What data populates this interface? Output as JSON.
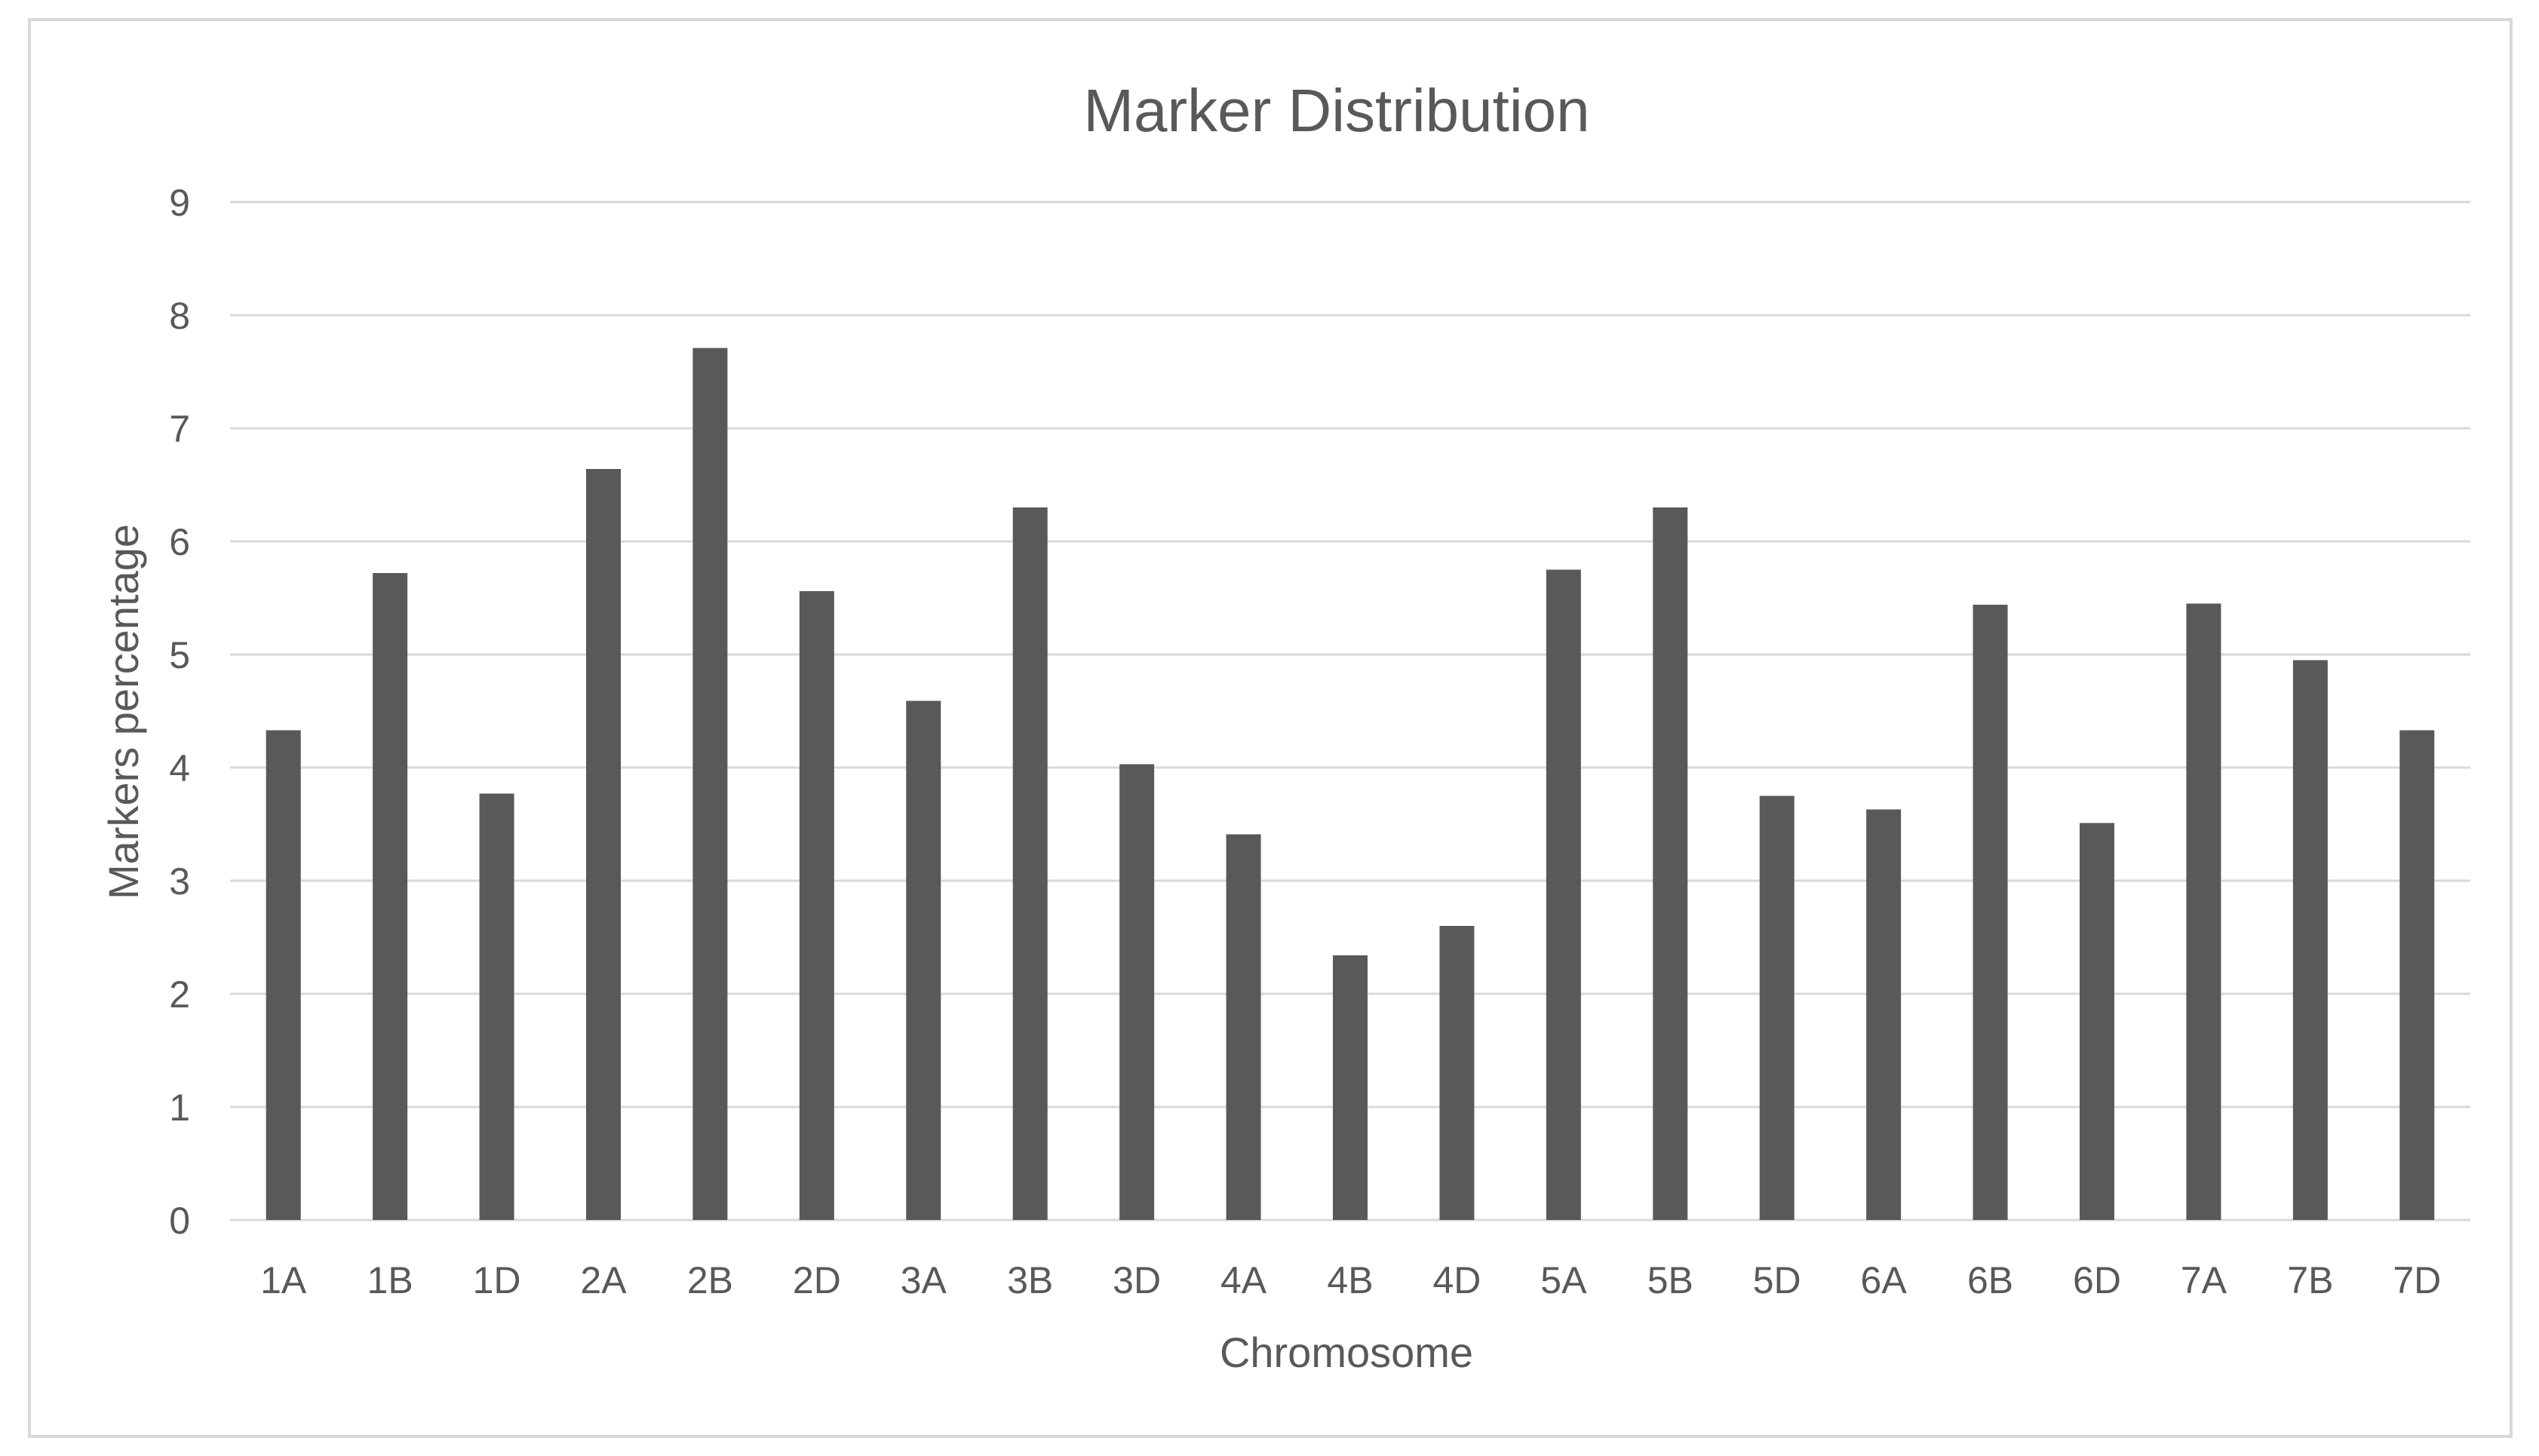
{
  "chart_data": {
    "type": "bar",
    "title": "Marker Distribution",
    "xlabel": "Chromosome",
    "ylabel": "Markers percentage",
    "categories": [
      "1A",
      "1B",
      "1D",
      "2A",
      "2B",
      "2D",
      "3A",
      "3B",
      "3D",
      "4A",
      "4B",
      "4D",
      "5A",
      "5B",
      "5D",
      "6A",
      "6B",
      "6D",
      "7A",
      "7B",
      "7D"
    ],
    "values": [
      4.33,
      5.72,
      3.77,
      6.64,
      7.71,
      5.56,
      4.59,
      6.3,
      4.03,
      3.41,
      2.34,
      2.6,
      5.75,
      6.3,
      3.75,
      3.63,
      5.44,
      3.51,
      5.45,
      4.95,
      4.33
    ],
    "yticks": [
      "0",
      "1",
      "2",
      "3",
      "4",
      "5",
      "6",
      "7",
      "8",
      "9"
    ],
    "ylim": [
      0,
      9
    ],
    "grid": true,
    "colors": {
      "bar": "#595959",
      "grid": "#d9d9d9",
      "text": "#595959",
      "frame": "#d9d9d9"
    }
  }
}
